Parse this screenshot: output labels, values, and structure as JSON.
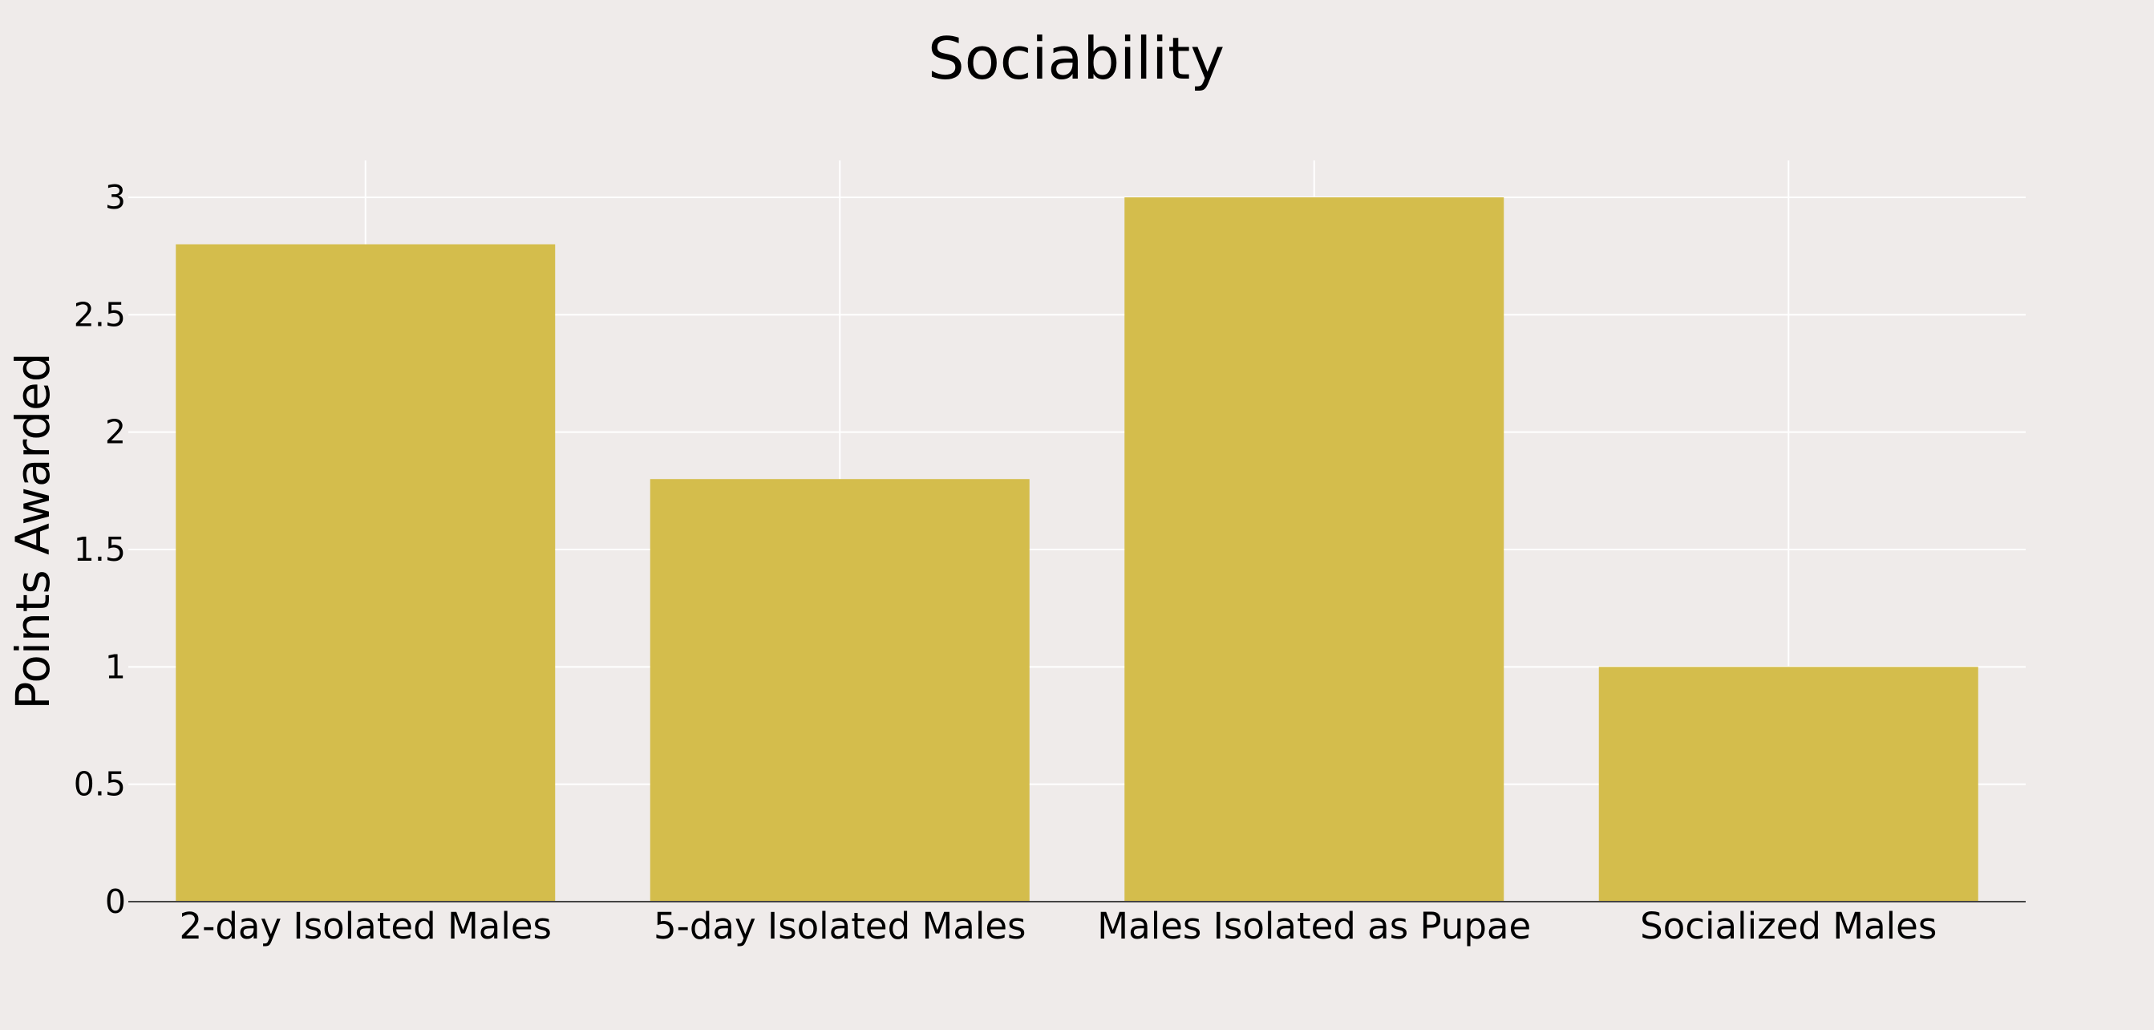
{
  "chart_data": {
    "type": "bar",
    "title": "Sociability",
    "xlabel": "",
    "ylabel": "Points Awarded",
    "categories": [
      "2-day Isolated Males",
      "5-day Isolated Males",
      "Males Isolated as Pupae",
      "Socialized Males"
    ],
    "values": [
      2.8,
      1.8,
      3.0,
      1.0
    ],
    "ylim": [
      0,
      3.16
    ],
    "yticks": [
      0,
      0.5,
      1,
      1.5,
      2,
      2.5,
      3
    ],
    "ytick_labels": [
      "0",
      "0.5",
      "1",
      "1.5",
      "2",
      "2.5",
      "3"
    ],
    "grid": true,
    "legend": "none",
    "bar_color": "#d4bd4c",
    "background_color": "#efebea",
    "grid_color": "#ffffff"
  }
}
